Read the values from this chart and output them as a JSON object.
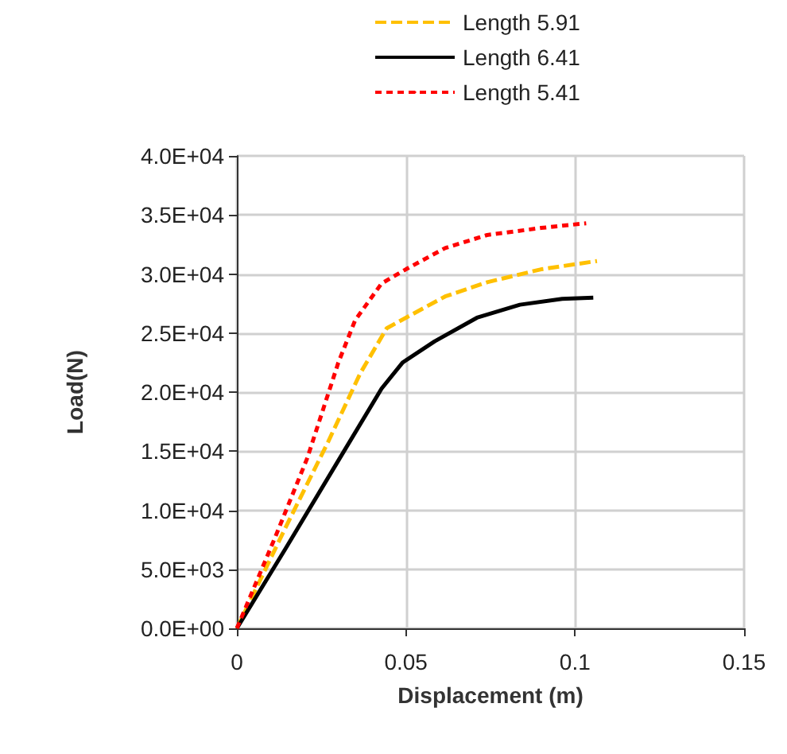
{
  "chart_data": {
    "type": "line",
    "xlabel": "Displacement (m)",
    "ylabel": "Load(N)",
    "xlim": [
      0,
      0.15
    ],
    "xticks": [
      0,
      0.05,
      0.1,
      0.15
    ],
    "ylim": [
      0,
      40000
    ],
    "yticks": [
      {
        "value": 0,
        "label": "0.0E+00"
      },
      {
        "value": 5000,
        "label": "5.0E+03"
      },
      {
        "value": 10000,
        "label": "1.0E+04"
      },
      {
        "value": 15000,
        "label": "1.5E+04"
      },
      {
        "value": 20000,
        "label": "2.0E+04"
      },
      {
        "value": 25000,
        "label": "2.5E+04"
      },
      {
        "value": 30000,
        "label": "3.0E+04"
      },
      {
        "value": 35000,
        "label": "3.5E+04"
      },
      {
        "value": 40000,
        "label": "4.0E+04"
      }
    ],
    "grid": true,
    "legend": "top",
    "marker": "none",
    "series": [
      {
        "name": "Length 5.91",
        "color": "#ffc000",
        "line_style": "dashed",
        "x": [
          0,
          0.0145,
          0.027,
          0.0365,
          0.0443,
          0.05,
          0.0616,
          0.074,
          0.09,
          0.1065
        ],
        "values": [
          0,
          8600,
          15800,
          21600,
          25400,
          26300,
          28100,
          29300,
          30400,
          31100
        ]
      },
      {
        "name": "Length 6.41",
        "color": "#000000",
        "line_style": "solid",
        "x": [
          0,
          0.0145,
          0.03,
          0.0428,
          0.049,
          0.0585,
          0.071,
          0.0837,
          0.0962,
          0.1054
        ],
        "values": [
          0,
          6800,
          14200,
          20300,
          22500,
          24300,
          26300,
          27400,
          27900,
          28000
        ]
      },
      {
        "name": "Length 5.41",
        "color": "#ff0000",
        "line_style": "dotted",
        "x": [
          0,
          0.0113,
          0.0208,
          0.03,
          0.035,
          0.0428,
          0.05,
          0.0616,
          0.074,
          0.09,
          0.1033
        ],
        "values": [
          0,
          7700,
          14400,
          22500,
          26100,
          29200,
          30400,
          32200,
          33300,
          33900,
          34300
        ]
      }
    ]
  }
}
